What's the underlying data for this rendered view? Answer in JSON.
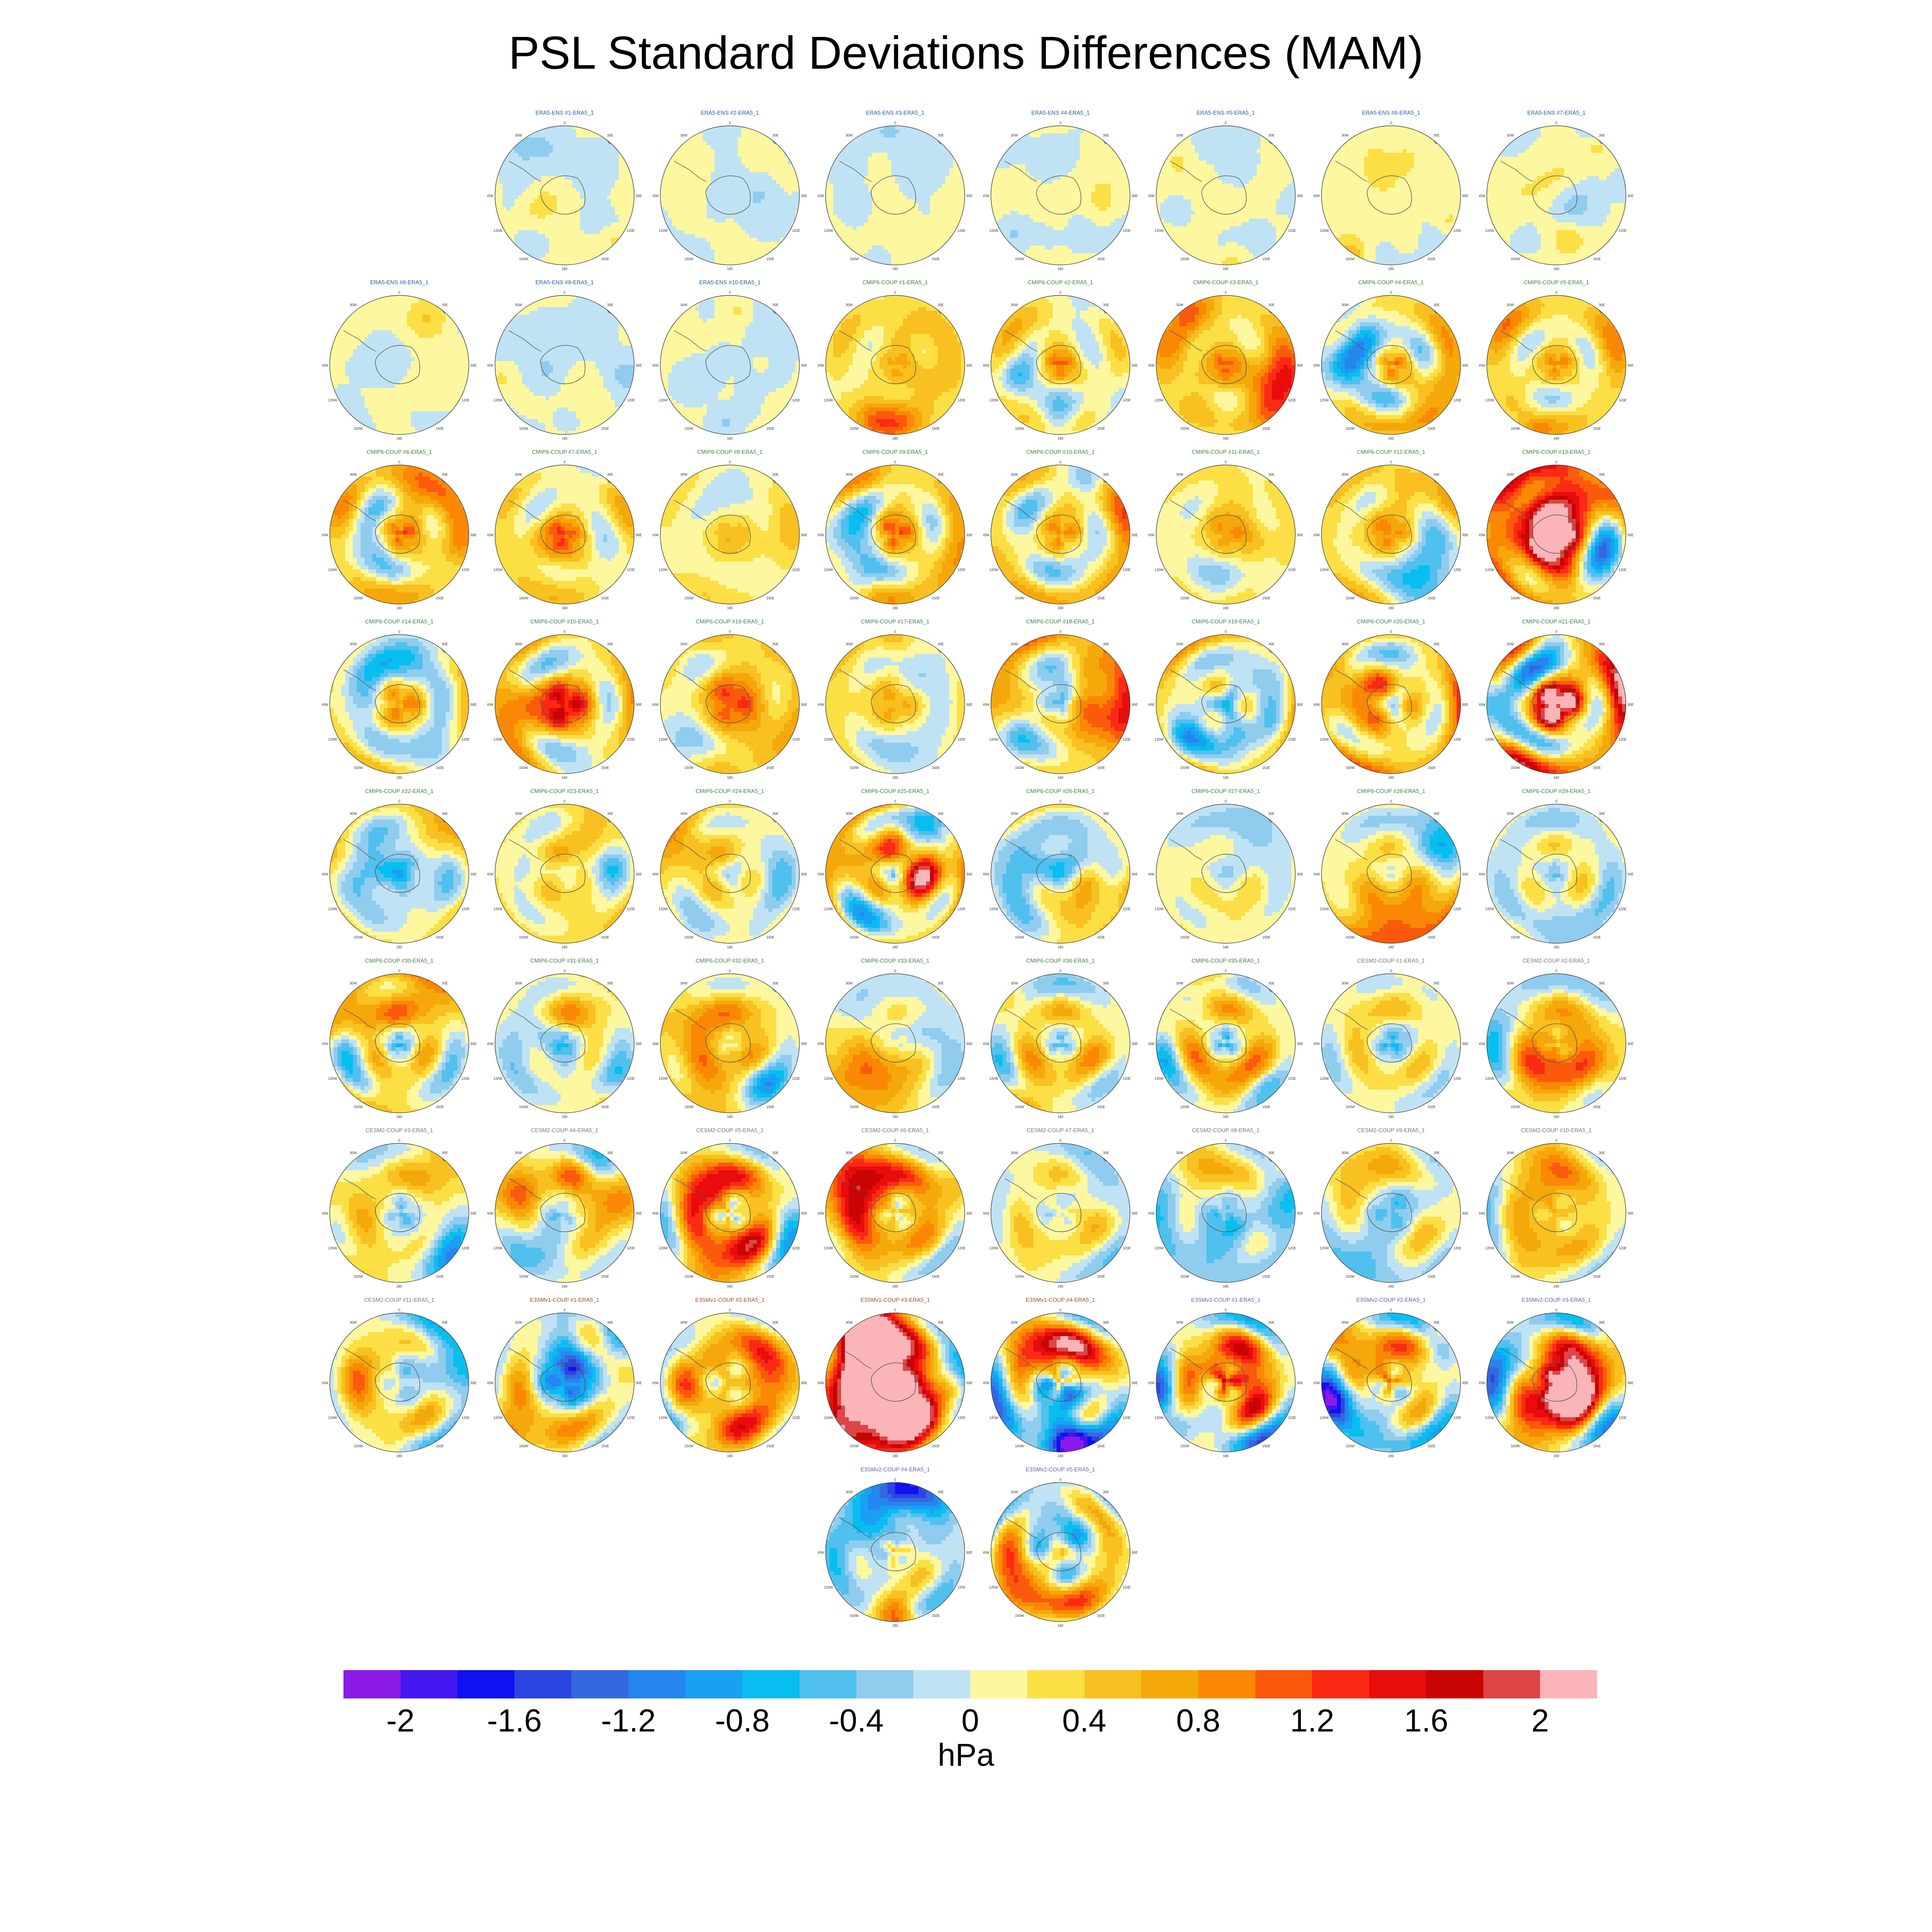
{
  "title": "PSL Standard Deviations Differences (MAM)",
  "colorbar": {
    "units": "hPa",
    "tick_labels": [
      "-2",
      "-1.6",
      "-1.2",
      "-0.8",
      "-0.4",
      "0",
      "0.4",
      "0.8",
      "1.2",
      "1.6",
      "2"
    ],
    "colors": [
      "#8a1be8",
      "#4416f0",
      "#1010f0",
      "#2a45e0",
      "#3468df",
      "#2486ee",
      "#1aa0f2",
      "#08bef0",
      "#50c0ee",
      "#90ccee",
      "#bfe3f4",
      "#fdf7a0",
      "#fbdf45",
      "#f8c020",
      "#f5a80a",
      "#fb8805",
      "#fb5a0c",
      "#fb2a14",
      "#e80c0c",
      "#c80404",
      "#dc4646",
      "#fbb4b8"
    ]
  },
  "panel_axis_labels": {
    "top": "0",
    "bottom": "180",
    "left_upper": "30W",
    "right_upper": "30E",
    "left_mid": "90W",
    "right_mid": "90E",
    "left_lower": "120W",
    "right_lower": "120E",
    "bl": "150W",
    "br": "150E"
  },
  "panels": [
    {
      "title": "ERA5-ENS   #1-ERA5_1",
      "group": "ERA5",
      "intensity": 0.1
    },
    {
      "title": "ERA5-ENS   #2-ERA5_1",
      "group": "ERA5",
      "intensity": 0.1
    },
    {
      "title": "ERA5-ENS   #3-ERA5_1",
      "group": "ERA5",
      "intensity": 0.1
    },
    {
      "title": "ERA5-ENS   #4-ERA5_1",
      "group": "ERA5",
      "intensity": 0.1
    },
    {
      "title": "ERA5-ENS   #5-ERA5_1",
      "group": "ERA5",
      "intensity": 0.1
    },
    {
      "title": "ERA5-ENS   #6-ERA5_1",
      "group": "ERA5",
      "intensity": 0.1
    },
    {
      "title": "ERA5-ENS   #7-ERA5_1",
      "group": "ERA5",
      "intensity": 0.1
    },
    {
      "title": "ERA5-ENS   #8-ERA5_1",
      "group": "ERA5",
      "intensity": 0.1
    },
    {
      "title": "ERA5-ENS   #9-ERA5_1",
      "group": "ERA5",
      "intensity": 0.1
    },
    {
      "title": "ERA5-ENS   #10-ERA5_1",
      "group": "ERA5",
      "intensity": 0.1
    },
    {
      "title": "CMIP6-COUP   #1-ERA5_1",
      "group": "CMIP6",
      "intensity": 0.55
    },
    {
      "title": "CMIP6-COUP   #2-ERA5_1",
      "group": "CMIP6",
      "intensity": 0.8
    },
    {
      "title": "CMIP6-COUP   #3-ERA5_1",
      "group": "CMIP6",
      "intensity": 0.9
    },
    {
      "title": "CMIP6-COUP   #4-ERA5_1",
      "group": "CMIP6",
      "intensity": 0.75
    },
    {
      "title": "CMIP6-COUP   #5-ERA5_1",
      "group": "CMIP6",
      "intensity": 0.65
    },
    {
      "title": "CMIP6-COUP   #6-ERA5_1",
      "group": "CMIP6",
      "intensity": 0.85
    },
    {
      "title": "CMIP6-COUP   #7-ERA5_1",
      "group": "CMIP6",
      "intensity": 0.7
    },
    {
      "title": "CMIP6-COUP   #8-ERA5_1",
      "group": "CMIP6",
      "intensity": 0.4
    },
    {
      "title": "CMIP6-COUP   #9-ERA5_1",
      "group": "CMIP6",
      "intensity": 0.6
    },
    {
      "title": "CMIP6-COUP   #10-ERA5_1",
      "group": "CMIP6",
      "intensity": 0.7
    },
    {
      "title": "CMIP6-COUP   #11-ERA5_1",
      "group": "CMIP6",
      "intensity": 0.35
    },
    {
      "title": "CMIP6-COUP   #12-ERA5_1",
      "group": "CMIP6",
      "intensity": 0.65
    },
    {
      "title": "CMIP6-COUP   #13-ERA5_1",
      "group": "CMIP6",
      "intensity": 1.5
    },
    {
      "title": "CMIP6-COUP   #14-ERA5_1",
      "group": "CMIP6",
      "intensity": 0.55
    },
    {
      "title": "CMIP6-COUP   #15-ERA5_1",
      "group": "CMIP6",
      "intensity": 0.8
    },
    {
      "title": "CMIP6-COUP   #16-ERA5_1",
      "group": "CMIP6",
      "intensity": 0.5
    },
    {
      "title": "CMIP6-COUP   #17-ERA5_1",
      "group": "CMIP6",
      "intensity": 0.45
    },
    {
      "title": "CMIP6-COUP   #18-ERA5_1",
      "group": "CMIP6",
      "intensity": 0.95
    },
    {
      "title": "CMIP6-COUP   #19-ERA5_1",
      "group": "CMIP6",
      "intensity": 0.75
    },
    {
      "title": "CMIP6-COUP   #20-ERA5_1",
      "group": "CMIP6",
      "intensity": 0.9
    },
    {
      "title": "CMIP6-COUP   #21-ERA5_1",
      "group": "CMIP6",
      "intensity": 1.6
    },
    {
      "title": "CMIP6-COUP   #22-ERA5_1",
      "group": "CMIP6",
      "intensity": 0.6
    },
    {
      "title": "CMIP6-COUP   #23-ERA5_1",
      "group": "CMIP6",
      "intensity": 0.65
    },
    {
      "title": "CMIP6-COUP   #24-ERA5_1",
      "group": "CMIP6",
      "intensity": 0.45
    },
    {
      "title": "CMIP6-COUP   #25-ERA5_1",
      "group": "CMIP6",
      "intensity": 1.1
    },
    {
      "title": "CMIP6-COUP   #26-ERA5_1",
      "group": "CMIP6",
      "intensity": 0.6
    },
    {
      "title": "CMIP6-COUP   #27-ERA5_1",
      "group": "CMIP6",
      "intensity": 0.4
    },
    {
      "title": "CMIP6-COUP   #28-ERA5_1",
      "group": "CMIP6",
      "intensity": 0.75
    },
    {
      "title": "CMIP6-COUP   #29-ERA5_1",
      "group": "CMIP6",
      "intensity": 0.45
    },
    {
      "title": "CMIP6-COUP   #30-ERA5_1",
      "group": "CMIP6",
      "intensity": 0.8
    },
    {
      "title": "CMIP6-COUP   #31-ERA5_1",
      "group": "CMIP6",
      "intensity": 0.6
    },
    {
      "title": "CMIP6-COUP   #32-ERA5_1",
      "group": "CMIP6",
      "intensity": 0.7
    },
    {
      "title": "CMIP6-COUP   #33-ERA5_1",
      "group": "CMIP6",
      "intensity": 0.45
    },
    {
      "title": "CMIP6-COUP   #34-ERA5_1",
      "group": "CMIP6",
      "intensity": 0.6
    },
    {
      "title": "CMIP6-COUP   #35-ERA5_1",
      "group": "CMIP6",
      "intensity": 0.8
    },
    {
      "title": "CESM2-COUP   #1-ERA5_1",
      "group": "CESM2",
      "intensity": 0.6
    },
    {
      "title": "CESM2-COUP   #2-ERA5_1",
      "group": "CESM2",
      "intensity": 0.8
    },
    {
      "title": "CESM2-COUP   #3-ERA5_1",
      "group": "CESM2",
      "intensity": 0.75
    },
    {
      "title": "CESM2-COUP   #4-ERA5_1",
      "group": "CESM2",
      "intensity": 0.85
    },
    {
      "title": "CESM2-COUP   #5-ERA5_1",
      "group": "CESM2",
      "intensity": 0.9
    },
    {
      "title": "CESM2-COUP   #6-ERA5_1",
      "group": "CESM2",
      "intensity": 0.8
    },
    {
      "title": "CESM2-COUP   #7-ERA5_1",
      "group": "CESM2",
      "intensity": 0.55
    },
    {
      "title": "CESM2-COUP   #8-ERA5_1",
      "group": "CESM2",
      "intensity": 0.7
    },
    {
      "title": "CESM2-COUP   #9-ERA5_1",
      "group": "CESM2",
      "intensity": 0.75
    },
    {
      "title": "CESM2-COUP   #10-ERA5_1",
      "group": "CESM2",
      "intensity": 0.45
    },
    {
      "title": "CESM2-COUP   #11-ERA5_1",
      "group": "CESM2",
      "intensity": 0.65
    },
    {
      "title": "E3SMv1-COUP   #1-ERA5_1",
      "group": "E3SMv1",
      "intensity": 0.9
    },
    {
      "title": "E3SMv1-COUP   #2-ERA5_1",
      "group": "E3SMv1",
      "intensity": 1.1
    },
    {
      "title": "E3SMv1-COUP   #3-ERA5_1",
      "group": "E3SMv1",
      "intensity": 1.7
    },
    {
      "title": "E3SMv1-COUP   #4-ERA5_1",
      "group": "E3SMv1",
      "intensity": 1.3
    },
    {
      "title": "E3SMv2-COUP   #1-ERA5_1",
      "group": "E3SMv2",
      "intensity": 1.5
    },
    {
      "title": "E3SMv2-COUP   #2-ERA5_1",
      "group": "E3SMv2",
      "intensity": 1.5
    },
    {
      "title": "E3SMv2-COUP   #3-ERA5_1",
      "group": "E3SMv2",
      "intensity": 1.6
    },
    {
      "title": "E3SMv2-COUP   #4-ERA5_1",
      "group": "E3SMv2",
      "intensity": 1.4
    },
    {
      "title": "E3SMv2-COUP   #5-ERA5_1",
      "group": "E3SMv2",
      "intensity": 0.85
    }
  ],
  "group_title_colors": {
    "ERA5": "#1b5fa0",
    "CMIP6": "#3f8040",
    "CESM2": "#777777",
    "E3SMv1": "#a0452a",
    "E3SMv2": "#6a5ab8"
  }
}
